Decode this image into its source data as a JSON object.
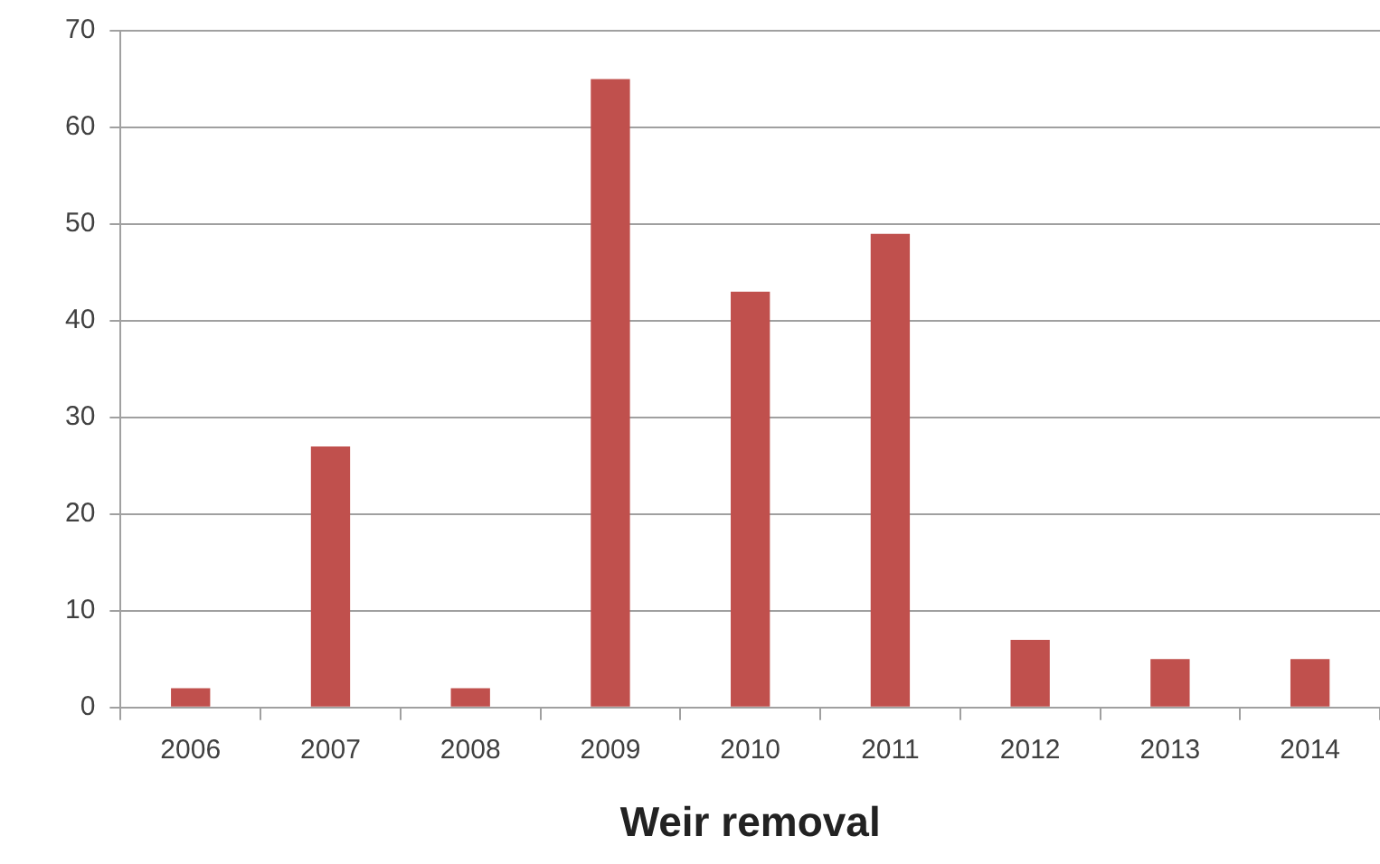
{
  "chart_data": {
    "type": "bar",
    "xlabel": "Weir removal",
    "categories": [
      "2006",
      "2007",
      "2008",
      "2009",
      "2010",
      "2011",
      "2012",
      "2013",
      "2014"
    ],
    "values": [
      2,
      27,
      2,
      65,
      43,
      49,
      7,
      5,
      5
    ],
    "color": "#c0504d",
    "ylim": [
      0,
      70
    ],
    "yticks": [
      0,
      10,
      20,
      30,
      40,
      50,
      60,
      70
    ],
    "grid": "y"
  }
}
